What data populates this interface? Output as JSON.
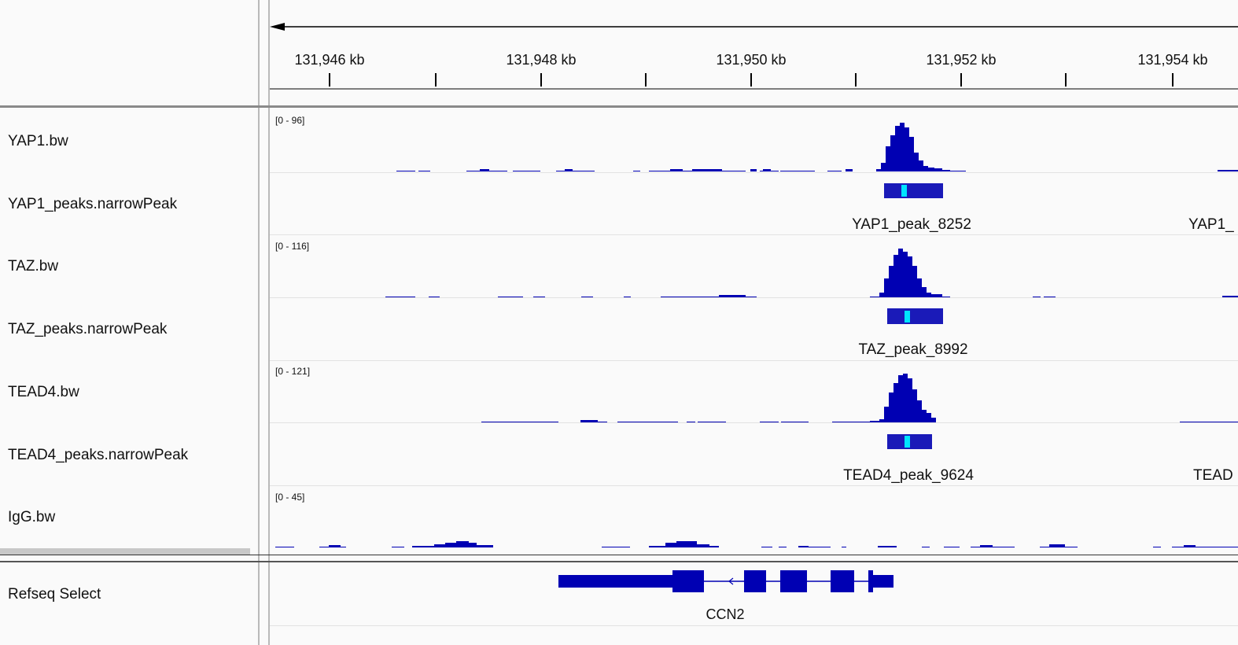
{
  "ruler": {
    "ticks": [
      {
        "label": "131,946 kb",
        "kb": 131946
      },
      {
        "label": "131,948 kb",
        "kb": 131948
      },
      {
        "label": "131,950 kb",
        "kb": 131950
      },
      {
        "label": "131,952 kb",
        "kb": 131952
      },
      {
        "label": "131,954 kb",
        "kb": 131954
      }
    ]
  },
  "tracks": [
    {
      "id": "yap1-bw",
      "name": "YAP1.bw",
      "type": "bigwig",
      "scale": "[0 - 96]"
    },
    {
      "id": "yap1-peaks",
      "name": "YAP1_peaks.narrowPeak",
      "type": "peak",
      "labels": [
        "YAP1_peak_8252",
        "YAP1_"
      ]
    },
    {
      "id": "taz-bw",
      "name": "TAZ.bw",
      "type": "bigwig",
      "scale": "[0 - 116]"
    },
    {
      "id": "taz-peaks",
      "name": "TAZ_peaks.narrowPeak",
      "type": "peak",
      "labels": [
        "TAZ_peak_8992"
      ]
    },
    {
      "id": "tead4-bw",
      "name": "TEAD4.bw",
      "type": "bigwig",
      "scale": "[0 - 121]"
    },
    {
      "id": "tead4-peaks",
      "name": "TEAD4_peaks.narrowPeak",
      "type": "peak",
      "labels": [
        "TEAD4_peak_9624",
        "TEAD"
      ]
    },
    {
      "id": "igg-bw",
      "name": "IgG.bw",
      "type": "bigwig",
      "scale": "[0 - 45]"
    }
  ],
  "refseq": {
    "name": "Refseq Select",
    "gene": "CCN2"
  },
  "colors": {
    "signal": "#0000b3",
    "peak_body": "#1a1ab8",
    "summit": "#00e5ff",
    "gene": "#0000b3"
  }
}
